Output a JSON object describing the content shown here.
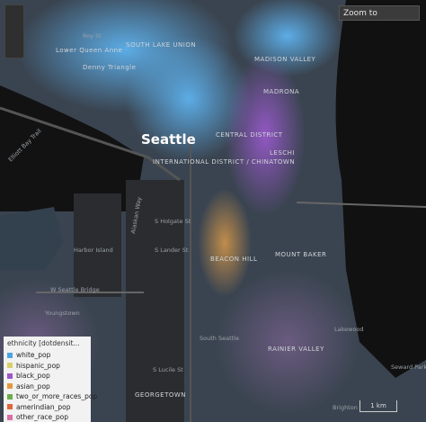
{
  "search": {
    "label": "Zoom to"
  },
  "places": [
    {
      "label": "Seattle"
    },
    {
      "label": "SOUTH LAKE UNION"
    },
    {
      "label": "Lower Queen Anne"
    },
    {
      "label": "Denny Triangle"
    },
    {
      "label": "Roy St"
    },
    {
      "label": "MADISON VALLEY"
    },
    {
      "label": "MADRONA"
    },
    {
      "label": "CENTRAL DISTRICT"
    },
    {
      "label": "INTERNATIONAL DISTRICT / CHINATOWN"
    },
    {
      "label": "LESCHI"
    },
    {
      "label": "S Holgate St"
    },
    {
      "label": "Harbor Island"
    },
    {
      "label": "S Lander St"
    },
    {
      "label": "BEACON HILL"
    },
    {
      "label": "MOUNT BAKER"
    },
    {
      "label": "W Seattle Bridge"
    },
    {
      "label": "Youngstown"
    },
    {
      "label": "Alaskan Way"
    },
    {
      "label": "South Seattle"
    },
    {
      "label": "Lakewood"
    },
    {
      "label": "S Lucile St"
    },
    {
      "label": "GEORGETOWN"
    },
    {
      "label": "RAINIER VALLEY"
    },
    {
      "label": "Brighton"
    },
    {
      "label": "Seward Park"
    },
    {
      "label": "Elliott Bay Trail"
    }
  ],
  "legend": {
    "title": "ethnicity [dotdensit...",
    "items": [
      {
        "label": "white_pop",
        "color": "#4ea3e0"
      },
      {
        "label": "hispanic_pop",
        "color": "#d8cf6a"
      },
      {
        "label": "black_pop",
        "color": "#9b57cc"
      },
      {
        "label": "asian_pop",
        "color": "#e39a3e"
      },
      {
        "label": "two_or_more_races_pop",
        "color": "#6aae4f"
      },
      {
        "label": "amerindian_pop",
        "color": "#e0653a"
      },
      {
        "label": "other_race_pop",
        "color": "#d86fa6"
      }
    ]
  },
  "scale": {
    "label": "1 km"
  }
}
